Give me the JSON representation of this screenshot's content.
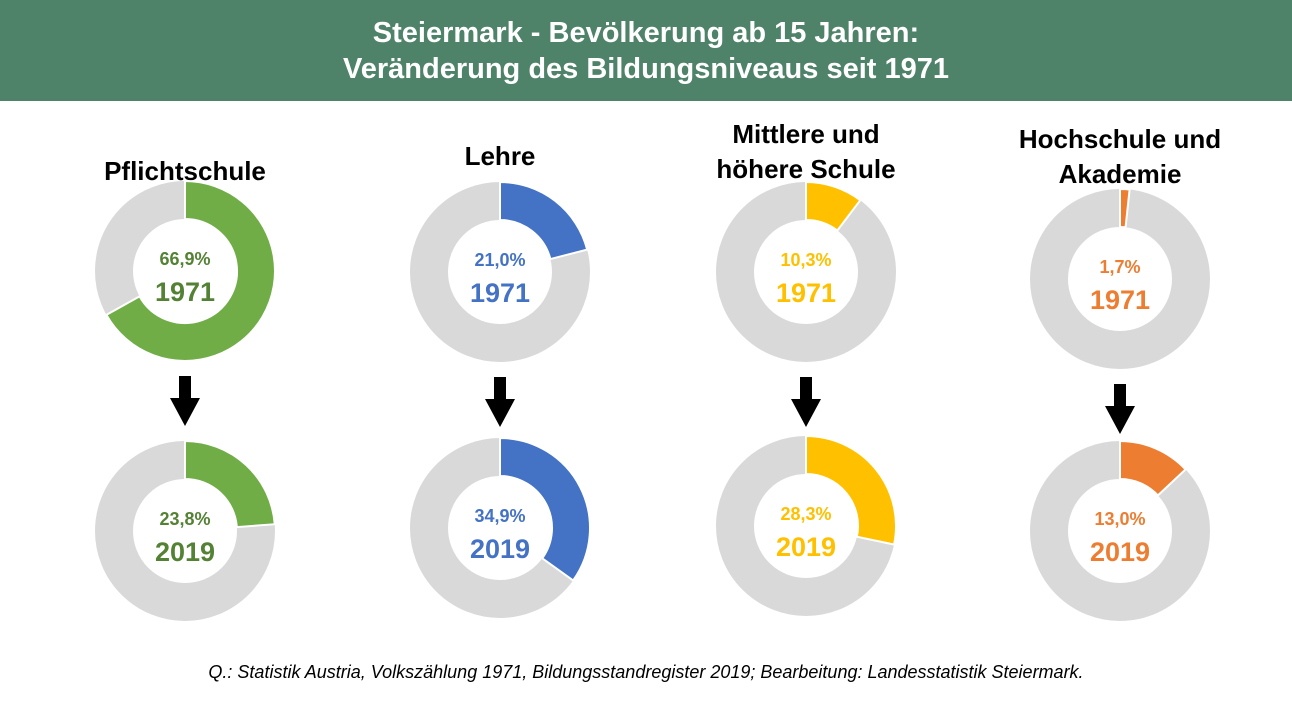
{
  "header": {
    "title_line1": "Steiermark - Bevölkerung ab 15 Jahren:",
    "title_line2": "Veränderung des Bildungsniveaus seit 1971"
  },
  "source_note": "Q.: Statistik Austria, Volkszählung 1971, Bildungsstandregister 2019; Bearbeitung: Landesstatistik Steiermark.",
  "remainder_color": "#d9d9d9",
  "arrow_icon": "down-arrow-icon",
  "chart_data": [
    {
      "type": "pie",
      "category": "pflichtschule",
      "title_lines": [
        "Pflichtschule"
      ],
      "color": "#70ad47",
      "label_color": "#548235",
      "series": [
        {
          "year": "1971",
          "value": 66.9,
          "label": "66,9%"
        },
        {
          "year": "2019",
          "value": 23.8,
          "label": "23,8%"
        }
      ]
    },
    {
      "type": "pie",
      "category": "lehre",
      "title_lines": [
        "Lehre"
      ],
      "color": "#4472c4",
      "label_color": "#4472c4",
      "series": [
        {
          "year": "1971",
          "value": 21.0,
          "label": "21,0%"
        },
        {
          "year": "2019",
          "value": 34.9,
          "label": "34,9%"
        }
      ]
    },
    {
      "type": "pie",
      "category": "mittlere-hoehere-schule",
      "title_lines": [
        "Mittlere und",
        "höhere Schule"
      ],
      "color": "#ffc000",
      "label_color": "#ffc000",
      "series": [
        {
          "year": "1971",
          "value": 10.3,
          "label": "10,3%"
        },
        {
          "year": "2019",
          "value": 28.3,
          "label": "28,3%"
        }
      ]
    },
    {
      "type": "pie",
      "category": "hochschule-akademie",
      "title_lines": [
        "Hochschule und",
        "Akademie"
      ],
      "color": "#ed7d31",
      "label_color": "#ed7d31",
      "series": [
        {
          "year": "1971",
          "value": 1.7,
          "label": "1,7%"
        },
        {
          "year": "2019",
          "value": 13.0,
          "label": "13,0%"
        }
      ]
    }
  ]
}
